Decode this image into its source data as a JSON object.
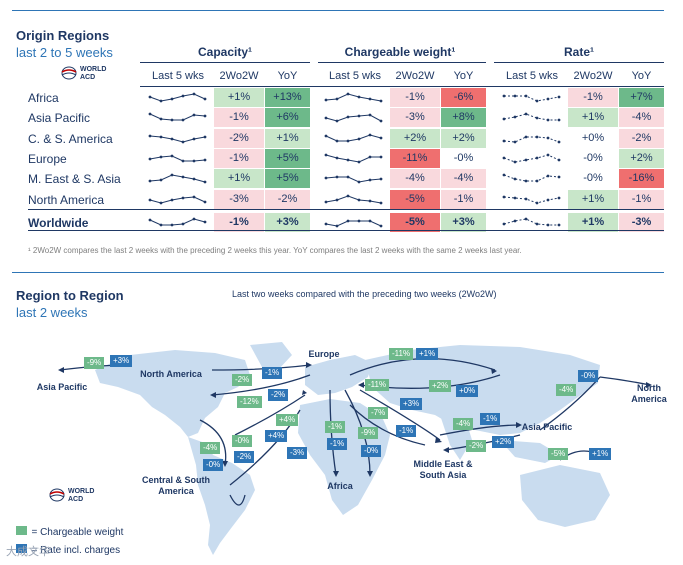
{
  "colors": {
    "green": "#6db98a",
    "lightgreen": "#c8e6c9",
    "red": "#ef6f6f",
    "lightred": "#f9d9dd",
    "navy": "#1f3864",
    "blue": "#2e75b6"
  },
  "origin": {
    "title": "Origin Regions",
    "subtitle": "last 2 to 5 weeks",
    "logo": "WORLD ACD",
    "groups": [
      "Capacity¹",
      "Chargeable weight¹",
      "Rate¹"
    ],
    "col_headers": [
      "Last 5 wks",
      "2Wo2W",
      "YoY"
    ],
    "rows": [
      {
        "region": "Africa",
        "cap_w": "+1%",
        "cap_y": "+13%",
        "cw_w": "-1%",
        "cw_y": "-6%",
        "rate_w": "-1%",
        "rate_y": "+7%"
      },
      {
        "region": "Asia Pacific",
        "cap_w": "-1%",
        "cap_y": "+6%",
        "cw_w": "-3%",
        "cw_y": "+8%",
        "rate_w": "+1%",
        "rate_y": "-4%"
      },
      {
        "region": "C. & S. America",
        "cap_w": "-2%",
        "cap_y": "+1%",
        "cw_w": "+2%",
        "cw_y": "+2%",
        "rate_w": "+0%",
        "rate_y": "-2%"
      },
      {
        "region": "Europe",
        "cap_w": "-1%",
        "cap_y": "+5%",
        "cw_w": "-11%",
        "cw_y": "-0%",
        "rate_w": "-0%",
        "rate_y": "+2%"
      },
      {
        "region": "M. East & S. Asia",
        "cap_w": "+1%",
        "cap_y": "+5%",
        "cw_w": "-4%",
        "cw_y": "-4%",
        "rate_w": "-0%",
        "rate_y": "-16%"
      },
      {
        "region": "North America",
        "cap_w": "-3%",
        "cap_y": "-2%",
        "cw_w": "-5%",
        "cw_y": "-1%",
        "rate_w": "+1%",
        "rate_y": "-1%"
      },
      {
        "region": "Worldwide",
        "cap_w": "-1%",
        "cap_y": "+3%",
        "cw_w": "-5%",
        "cw_y": "+3%",
        "rate_w": "+1%",
        "rate_y": "-3%"
      }
    ],
    "footnote": "¹ 2Wo2W compares the last 2 weeks with the preceding 2 weeks this year. YoY compares the last 2 weeks with the same 2 weeks last year."
  },
  "r2r": {
    "title": "Region to Region",
    "subtitle": "last 2 weeks",
    "caption": "Last two weeks compared with the preceding two weeks (2Wo2W)",
    "logo": "WORLD ACD",
    "region_labels": {
      "asia_w": "Asia Pacific",
      "na": "North America",
      "eu": "Europe",
      "na_e": "North America",
      "ap": "Asia Pacific",
      "csa": "Central & South America",
      "af": "Africa",
      "mesa": "Middle East & South Asia"
    },
    "tags": {
      "t1": "-9%",
      "t2": "+3%",
      "t3": "-2%",
      "t4": "-1%",
      "t5": "-12%",
      "t6": "-2%",
      "t7": "+4%",
      "t8": "+4%",
      "t9": "-3%",
      "t10": "-4%",
      "t11": "-0%",
      "t12": "-0%",
      "t13": "-2%",
      "t14": "-11%",
      "t15": "+1%",
      "t16": "-11%",
      "t17": "+2%",
      "t18": "+0%",
      "t19": "+3%",
      "t20": "-7%",
      "t21": "-1%",
      "t22": "-1%",
      "t23": "-9%",
      "t24": "-0%",
      "t25": "-1%",
      "t26": "-4%",
      "t27": "-1%",
      "t28": "-2%",
      "t29": "+2%",
      "t30": "-4%",
      "t31": "-0%",
      "t32": "-5%",
      "t33": "+1%"
    },
    "legend_cw": "= Chargeable weight",
    "legend_rate": "= Rate incl. charges",
    "watermark": "大成文华"
  }
}
